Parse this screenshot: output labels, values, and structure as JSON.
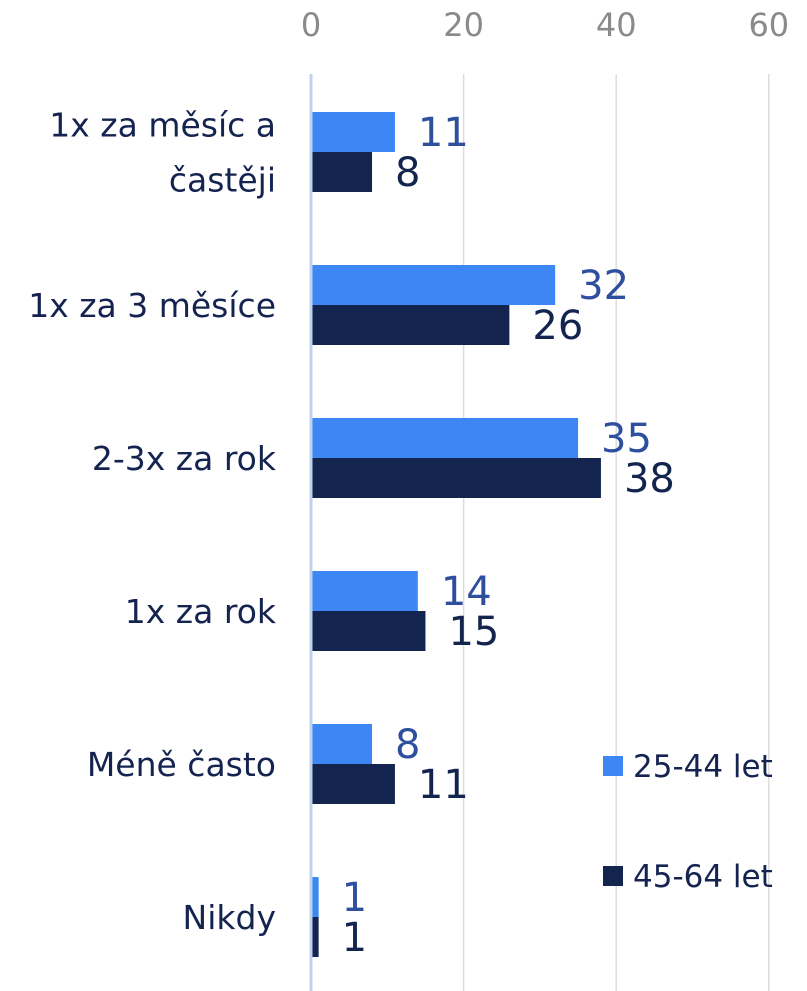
{
  "chart_data": {
    "type": "bar",
    "orientation": "horizontal",
    "categories": [
      [
        "1x za měsíc a",
        "častěji"
      ],
      [
        "1x za 3 měsíce"
      ],
      [
        "2-3x za rok"
      ],
      [
        "1x za rok"
      ],
      [
        "Méně často"
      ],
      [
        "Nikdy"
      ]
    ],
    "series": [
      {
        "name": "25-44 let",
        "values": [
          11,
          32,
          35,
          14,
          8,
          1
        ]
      },
      {
        "name": "45-64 let",
        "values": [
          8,
          26,
          38,
          15,
          11,
          1
        ]
      }
    ],
    "xlim": [
      0,
      60
    ],
    "xticks": [
      0,
      20,
      40,
      60
    ],
    "x_tick_position": "top",
    "grid": true,
    "legend_position": "bottom-right"
  },
  "colors": {
    "series_1": "#3d87f5",
    "series_2": "#13254f",
    "label_1": "#2e4f9e",
    "label_2": "#13254f",
    "grid": "#dcdcdc",
    "axis": "#bcd2ee",
    "tick_text": "#8a8a8a",
    "category_text": "#14234f"
  }
}
